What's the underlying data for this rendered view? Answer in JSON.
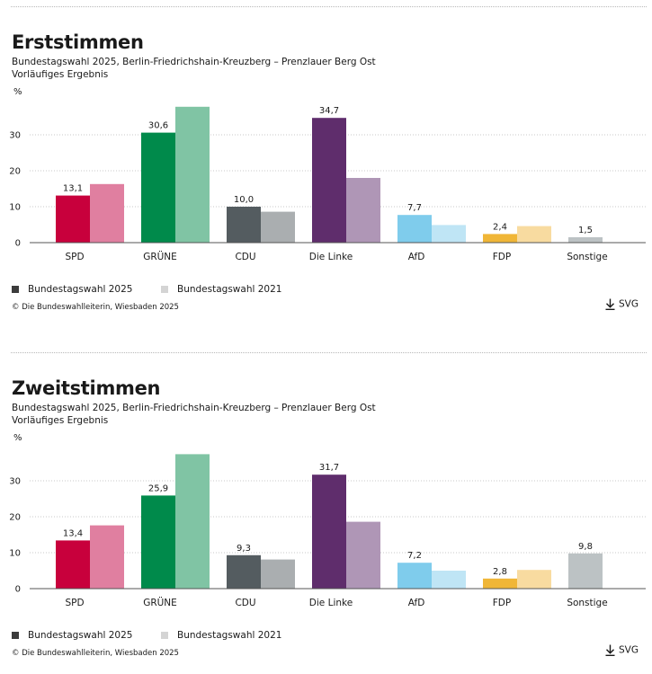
{
  "sections": [
    {
      "title": "Erststimmen",
      "subtitle": "Bundestagswahl 2025, Berlin-Friedrichshain-Kreuzberg – Prenzlauer Berg Ost",
      "status": "Vorläufiges Ergebnis",
      "unit_label": "%",
      "legend": {
        "current": "Bundestagswahl 2025",
        "previous": "Bundestagswahl 2021"
      },
      "source": "© Die Bundeswahlleiterin, Wiesbaden 2025",
      "download_label": "SVG"
    },
    {
      "title": "Zweitstimmen",
      "subtitle": "Bundestagswahl 2025, Berlin-Friedrichshain-Kreuzberg – Prenzlauer Berg Ost",
      "status": "Vorläufiges Ergebnis",
      "unit_label": "%",
      "legend": {
        "current": "Bundestagswahl 2025",
        "previous": "Bundestagswahl 2021"
      },
      "source": "© Die Bundeswahlleiterin, Wiesbaden 2025",
      "download_label": "SVG"
    }
  ],
  "legend_colors": {
    "current": "#3c3c3c",
    "previous": "#d4d4d4"
  },
  "chart_data": [
    {
      "type": "bar",
      "title": "Erststimmen",
      "ylabel": "%",
      "ylim": [
        0,
        38
      ],
      "yticks": [
        0,
        10,
        20,
        30
      ],
      "grid": true,
      "categories": [
        "SPD",
        "GRÜNE",
        "CDU",
        "Die Linke",
        "AfD",
        "FDP",
        "Sonstige"
      ],
      "colors_2025": [
        "#c8003c",
        "#008a4b",
        "#545c60",
        "#5f2d6c",
        "#7fccec",
        "#f0b637",
        "#bcc2c4"
      ],
      "colors_2021": [
        "#e07fa0",
        "#80c4a4",
        "#aaaeb0",
        "#af96b6",
        "#bfe5f5",
        "#f8dba0",
        "#dde0e2"
      ],
      "series": [
        {
          "name": "Bundestagswahl 2025",
          "values": [
            13.1,
            30.6,
            10.0,
            34.7,
            7.7,
            2.4,
            1.5
          ],
          "labels": [
            "13,1",
            "30,6",
            "10,0",
            "34,7",
            "7,7",
            "2,4",
            "1,5"
          ]
        },
        {
          "name": "Bundestagswahl 2021",
          "values": [
            16.3,
            37.8,
            8.6,
            18.0,
            4.9,
            4.6,
            null
          ]
        }
      ]
    },
    {
      "type": "bar",
      "title": "Zweitstimmen",
      "ylabel": "%",
      "ylim": [
        0,
        38
      ],
      "yticks": [
        0,
        10,
        20,
        30
      ],
      "grid": true,
      "categories": [
        "SPD",
        "GRÜNE",
        "CDU",
        "Die Linke",
        "AfD",
        "FDP",
        "Sonstige"
      ],
      "colors_2025": [
        "#c8003c",
        "#008a4b",
        "#545c60",
        "#5f2d6c",
        "#7fccec",
        "#f0b637",
        "#bcc2c4"
      ],
      "colors_2021": [
        "#e07fa0",
        "#80c4a4",
        "#aaaeb0",
        "#af96b6",
        "#bfe5f5",
        "#f8dba0",
        "#dde0e2"
      ],
      "series": [
        {
          "name": "Bundestagswahl 2025",
          "values": [
            13.4,
            25.9,
            9.3,
            31.7,
            7.2,
            2.8,
            9.8
          ],
          "labels": [
            "13,4",
            "25,9",
            "9,3",
            "31,7",
            "7,2",
            "2,8",
            "9,8"
          ]
        },
        {
          "name": "Bundestagswahl 2021",
          "values": [
            17.6,
            37.4,
            8.1,
            18.6,
            5.0,
            5.2,
            null
          ]
        }
      ]
    }
  ]
}
